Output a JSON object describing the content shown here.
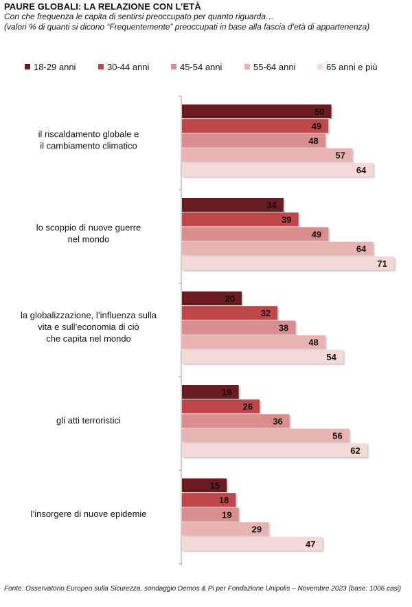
{
  "title": "PAURE GLOBALI: LA RELAZIONE CON L’ETÀ",
  "subtitle": "Con che frequenza le capita di sentirsi preoccupato per quanto riguarda…",
  "note": "(valori % di quanti si dicono “Frequentemente” preoccupati in base alla fascia d’età di appartenenza)",
  "source": "Fonte: Osservatorio Europeo sulla Sicurezza, sondaggio Demos & Pi per Fondazione Unipolis – Novembre 2023 (base: 1006 casi)",
  "chart_data": {
    "type": "bar",
    "orientation": "horizontal",
    "categories": [
      [
        "il riscaldamento globale e",
        "il cambiamento climatico"
      ],
      [
        "lo scoppio di nuove guerre",
        "nel mondo"
      ],
      [
        "la globalizzazione, l’influenza sulla",
        "vita e sull’economia di ciò",
        "che capita nel mondo"
      ],
      [
        "gli atti terroristici"
      ],
      [
        "l’insorgere di nuove epidemie"
      ]
    ],
    "series": [
      {
        "name": "18-29 anni",
        "color": "#6b1f24",
        "values": [
          50,
          34,
          20,
          19,
          15
        ]
      },
      {
        "name": "30-44 anni",
        "color": "#c0474a",
        "values": [
          49,
          39,
          32,
          26,
          18
        ]
      },
      {
        "name": "45-54 anni",
        "color": "#d98d8d",
        "values": [
          48,
          49,
          38,
          36,
          19
        ]
      },
      {
        "name": "55-64 anni",
        "color": "#e8b4b3",
        "values": [
          57,
          64,
          48,
          56,
          29
        ]
      },
      {
        "name": "65 anni e più",
        "color": "#f3d9d8",
        "values": [
          64,
          71,
          54,
          62,
          47
        ]
      }
    ],
    "xlim": [
      0,
      80
    ],
    "legend_position": "top",
    "data_labels": true,
    "grid": false
  }
}
